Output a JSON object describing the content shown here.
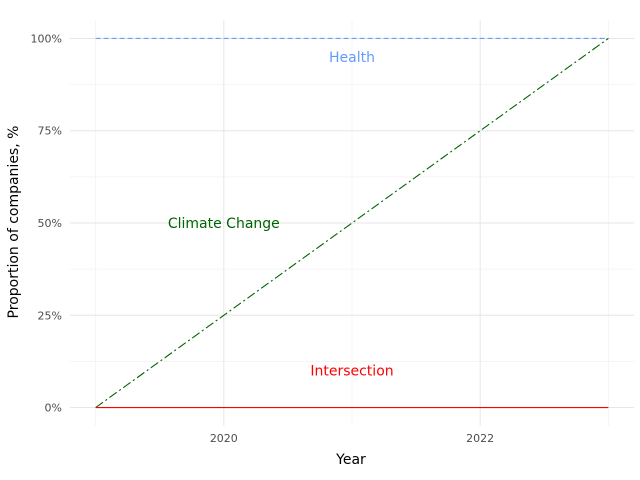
{
  "chart_data": {
    "type": "line",
    "xlabel": "Year",
    "ylabel": "Proportion of companies, %",
    "x": [
      2019,
      2023
    ],
    "xlim": [
      2018.8,
      2023.2
    ],
    "ylim": [
      -5,
      105
    ],
    "xticks": [
      2020,
      2022
    ],
    "xtick_labels": [
      "2020",
      "2022"
    ],
    "yticks": [
      0,
      25,
      50,
      75,
      100
    ],
    "ytick_labels": [
      "0%",
      "25%",
      "50%",
      "75%",
      "100%"
    ],
    "grid": true,
    "legend": "none",
    "series": [
      {
        "name": "Health",
        "values": [
          100,
          100
        ],
        "color": "#619CFF",
        "linestyle": "dashed",
        "label_x": 2021,
        "label_y": 95
      },
      {
        "name": "Climate Change",
        "values": [
          0,
          100
        ],
        "color": "#006400",
        "linestyle": "dashdot",
        "label_x": 2020,
        "label_y": 50
      },
      {
        "name": "Intersection",
        "values": [
          0,
          0
        ],
        "color": "#FF0000",
        "linestyle": "solid",
        "label_x": 2021,
        "label_y": 10
      }
    ]
  }
}
